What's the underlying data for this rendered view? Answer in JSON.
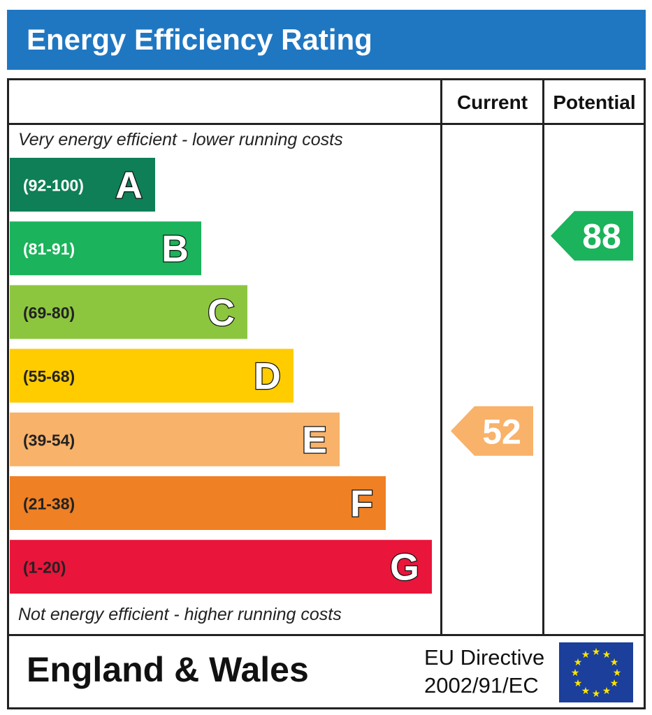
{
  "title": "Energy Efficiency Rating",
  "columns": {
    "current": "Current",
    "potential": "Potential"
  },
  "top_caption": "Very energy efficient - lower running costs",
  "bottom_caption": "Not energy efficient - higher running costs",
  "footer": {
    "region": "England & Wales",
    "directive_line1": "EU Directive",
    "directive_line2": "2002/91/EC",
    "flag_icon": "eu-flag-icon"
  },
  "chart_data": {
    "type": "bar",
    "title": "Energy Efficiency Rating",
    "bands": [
      {
        "letter": "A",
        "range": "(92-100)",
        "color": "#0e7f56"
      },
      {
        "letter": "B",
        "range": "(81-91)",
        "color": "#1bb35b"
      },
      {
        "letter": "C",
        "range": "(69-80)",
        "color": "#8cc63f"
      },
      {
        "letter": "D",
        "range": "(55-68)",
        "color": "#ffcc00"
      },
      {
        "letter": "E",
        "range": "(39-54)",
        "color": "#f8b26a"
      },
      {
        "letter": "F",
        "range": "(21-38)",
        "color": "#ef8023"
      },
      {
        "letter": "G",
        "range": "(1-20)",
        "color": "#e9153b"
      }
    ],
    "current": {
      "value": 52,
      "band": "E",
      "color": "#f8b26a"
    },
    "potential": {
      "value": 88,
      "band": "B",
      "color": "#1bb35b"
    }
  }
}
